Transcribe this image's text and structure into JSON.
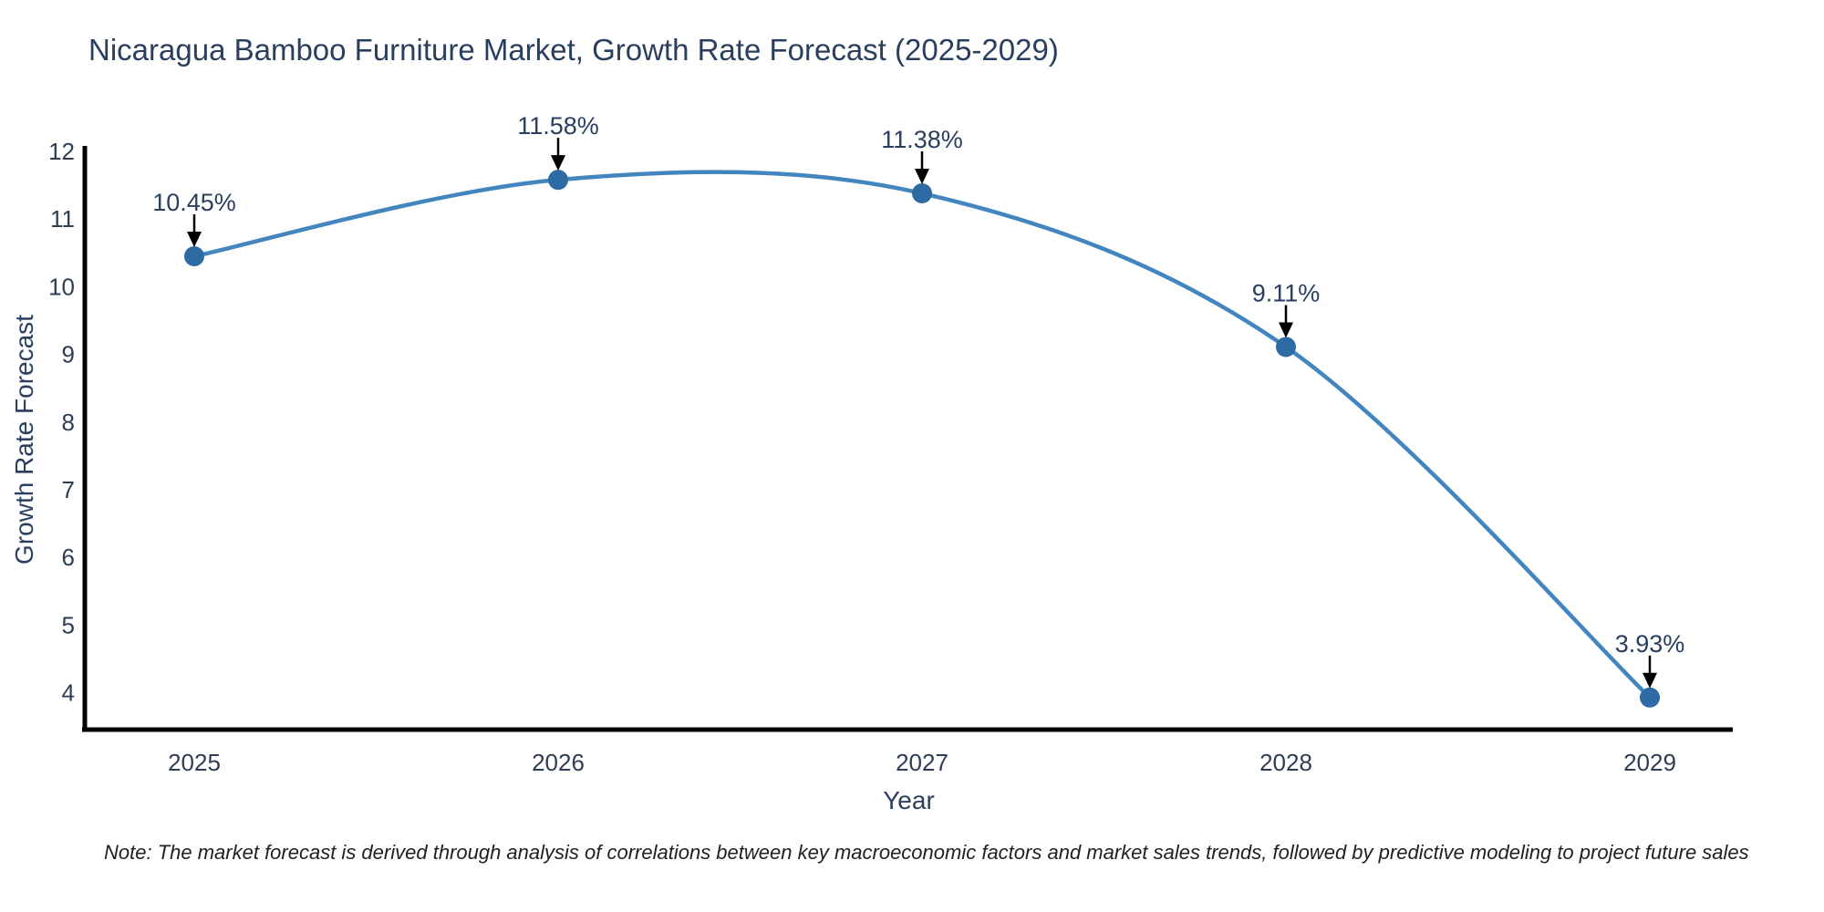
{
  "chart_data": {
    "type": "line",
    "line_shape": "spline",
    "title": "Nicaragua Bamboo Furniture Market, Growth Rate Forecast (2025-2029)",
    "xlabel": "Year",
    "ylabel": "Growth Rate Forecast",
    "categories": [
      "2025",
      "2026",
      "2027",
      "2028",
      "2029"
    ],
    "series": [
      {
        "name": "Growth Rate Forecast",
        "values": [
          10.45,
          11.58,
          11.38,
          9.11,
          3.93
        ],
        "point_labels": [
          "10.45%",
          "11.58%",
          "11.38%",
          "9.11%",
          "3.93%"
        ]
      }
    ],
    "yticks": [
      4,
      5,
      6,
      7,
      8,
      9,
      10,
      11,
      12
    ],
    "ylim": [
      3.45,
      12
    ],
    "grid": false,
    "legend_position": "none",
    "colors": {
      "line": "#4285bf",
      "marker": "#2e6ba4",
      "axis_line": "#000000",
      "title_text": "#2a3f5f",
      "tick_text": "#2e3d54",
      "annotation_text": "#2a3f5f",
      "arrow": "#000000"
    }
  },
  "note": {
    "text": "Note: The market forecast is derived through analysis of correlations between key macroeconomic factors and market sales trends, followed by predictive modeling to project future sales"
  }
}
